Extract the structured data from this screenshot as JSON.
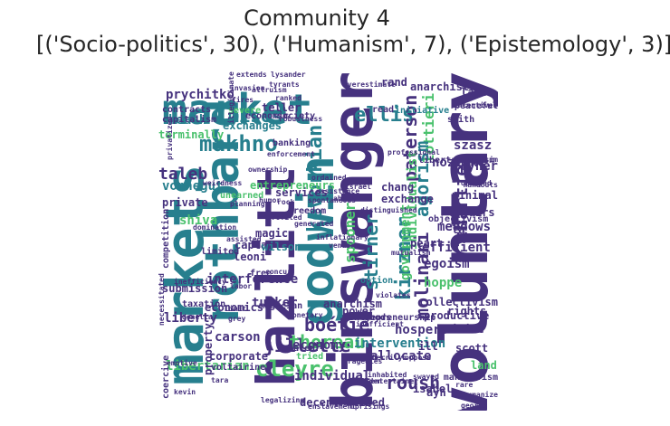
{
  "title_line1": "Community 4",
  "title_line2": "[('Socio-politics', 30), ('Humanism', 7), ('Epistemology', 3)]",
  "words": [
    "voluntary",
    "binswanger",
    "markets",
    "hazlitt",
    "rothbard",
    "godwin",
    "market",
    "kevorkian",
    "makhno",
    "ellis",
    "paterson",
    "lottieri",
    "molinari",
    "chartier",
    "kirzner",
    "stirner",
    "agorism",
    "mises",
    "cleyre",
    "jillette",
    "boétie",
    "roush",
    "spooner",
    "thoreau",
    "taleb",
    "prychitko",
    "szasz",
    "nozick",
    "individualist",
    "interference",
    "liberty",
    "libertarian",
    "economy",
    "allocate",
    "caplan",
    "leoni",
    "shiva",
    "tucker",
    "egoism",
    "efficient",
    "meadows",
    "hoppe",
    "government",
    "intervention",
    "hospers",
    "carson",
    "property",
    "individual",
    "decentralized",
    "vonnegut",
    "heath",
    "exchanges",
    "teller",
    "wilson",
    "magic",
    "services",
    "private",
    "scott",
    "rights",
    "ryner",
    "lane",
    "anarchist",
    "exchange",
    "affairs",
    "minimal",
    "chang",
    "peart",
    "rand",
    "land",
    "ill",
    "la",
    "terminally",
    "contracts",
    "capitalism",
    "competition",
    "submission",
    "taxation",
    "economics",
    "magician",
    "corporate",
    "voltairine",
    "coercive",
    "power",
    "anarchism",
    "collectivism",
    "productive",
    "suicide",
    "ayn",
    "isabel",
    "makhnovism",
    "objectivism",
    "libertarianism",
    "entrepreneurs",
    "entrepreneurship",
    "smith",
    "economic",
    "society",
    "banking",
    "unearned",
    "limited",
    "freedom",
    "initiative",
    "read",
    "peaceful",
    "free",
    "option",
    "goods",
    "severe",
    "extends",
    "lysander",
    "tyrants",
    "rare",
    "amateur",
    "tried",
    "dehumanize",
    "legalizing",
    "enslavement",
    "uprisings",
    "george",
    "emotive",
    "kevin",
    "grey",
    "limit",
    "inefficiency",
    "necessitated",
    "donella",
    "assisted",
    "planning",
    "privatized",
    "domination",
    "ownership",
    "enforcement",
    "robustness",
    "professional",
    "incentives",
    "damaged",
    "generated",
    "profited",
    "rock",
    "abide",
    "israel",
    "humor",
    "oppose",
    "walden",
    "sherrilyn",
    "violates",
    "entertainer",
    "labor",
    "monetary",
    "tara",
    "concur",
    "invasion",
    "fires",
    "ranked",
    "overestimate",
    "altruism",
    "spontaneous",
    "ordained",
    "assistance",
    "nassim",
    "handouts",
    "illegitimate",
    "tragedies",
    "vendors",
    "weirdness",
    "inefficient",
    "inhabited",
    "mutualism",
    "swayed",
    "inflationary",
    "distinguished",
    "aside",
    "rebellion",
    "legal"
  ],
  "colors": {
    "dark": "#46327e",
    "teal": "#277f8e",
    "green": "#4ac16d",
    "yellow": "#bddf26"
  }
}
